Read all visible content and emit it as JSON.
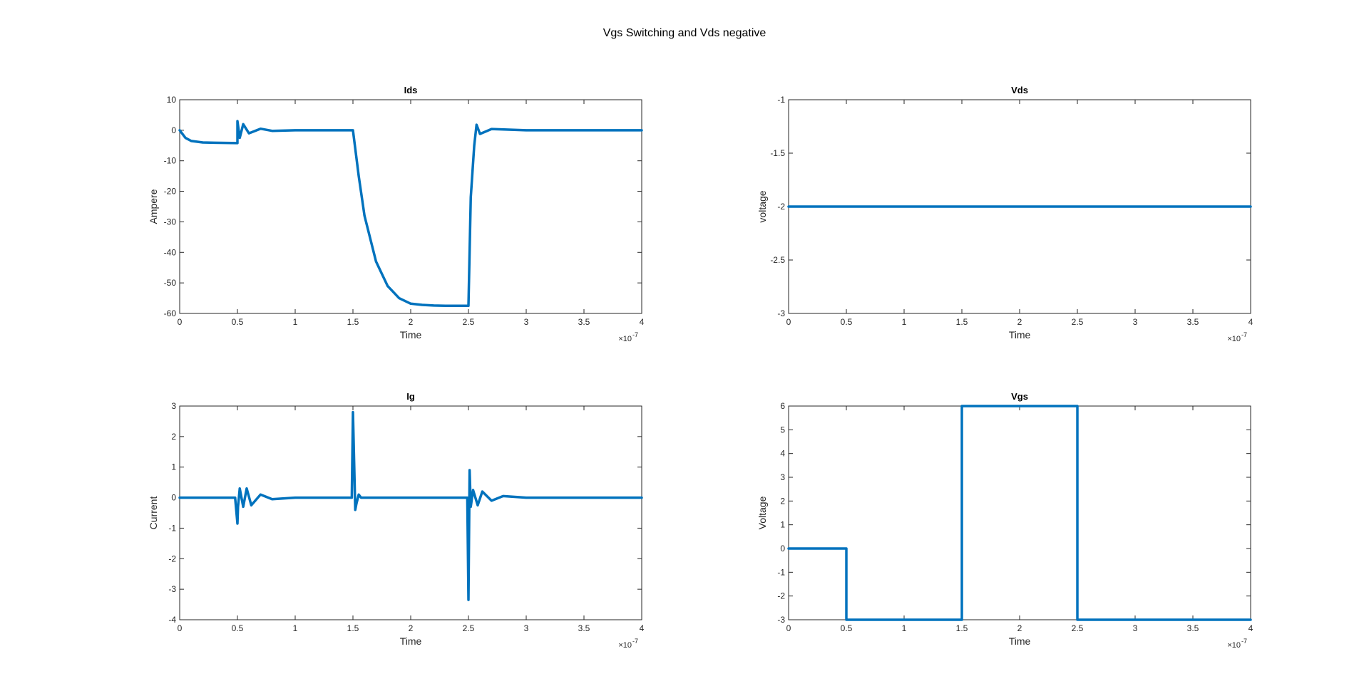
{
  "figure": {
    "title": "Vgs Switching and Vds negative",
    "line_color": "#0072BD"
  },
  "chart_data": [
    {
      "type": "line",
      "title": "Ids",
      "xlabel": "Time",
      "ylabel": "Ampere",
      "xlim": [
        0,
        4e-07
      ],
      "ylim": [
        -60,
        10
      ],
      "x_ticks": [
        0,
        0.5,
        1,
        1.5,
        2,
        2.5,
        3,
        3.5,
        4
      ],
      "x_tick_labels": [
        "0",
        "0.5",
        "1",
        "1.5",
        "2",
        "2.5",
        "3",
        "3.5",
        "4"
      ],
      "y_ticks": [
        -60,
        -50,
        -40,
        -30,
        -20,
        -10,
        0,
        10
      ],
      "y_tick_labels": [
        "-60",
        "-50",
        "-40",
        "-30",
        "-20",
        "-10",
        "0",
        "10"
      ],
      "x_exponent_base": "×10",
      "x_exponent_power": "-7",
      "grid": false,
      "series": [
        {
          "x": [
            0,
            5e-09,
            1e-08,
            2e-08,
            3e-08,
            5e-08,
            5e-08,
            5.2e-08,
            5.5e-08,
            6e-08,
            7e-08,
            8e-08,
            1e-07,
            1.3e-07,
            1.5e-07,
            1.55e-07,
            1.6e-07,
            1.7e-07,
            1.8e-07,
            1.9e-07,
            2e-07,
            2.1e-07,
            2.2e-07,
            2.3e-07,
            2.5e-07,
            2.52e-07,
            2.55e-07,
            2.57e-07,
            2.6e-07,
            2.7e-07,
            3e-07,
            4e-07
          ],
          "y": [
            0,
            -2.5,
            -3.5,
            -4.0,
            -4.1,
            -4.2,
            3.0,
            -2.5,
            2.0,
            -1.0,
            0.5,
            -0.2,
            0,
            0,
            0,
            -15,
            -28,
            -43,
            -51,
            -55,
            -56.8,
            -57.2,
            -57.4,
            -57.5,
            -57.5,
            -22,
            -5,
            1.8,
            -1.2,
            0.4,
            0,
            0
          ]
        }
      ]
    },
    {
      "type": "line",
      "title": "Vds",
      "xlabel": "Time",
      "ylabel": "voltage",
      "xlim": [
        0,
        4e-07
      ],
      "ylim": [
        -3,
        -1
      ],
      "x_ticks": [
        0,
        0.5,
        1,
        1.5,
        2,
        2.5,
        3,
        3.5,
        4
      ],
      "x_tick_labels": [
        "0",
        "0.5",
        "1",
        "1.5",
        "2",
        "2.5",
        "3",
        "3.5",
        "4"
      ],
      "y_ticks": [
        -3,
        -2.5,
        -2,
        -1.5,
        -1
      ],
      "y_tick_labels": [
        "-3",
        "-2.5",
        "-2",
        "-1.5",
        "-1"
      ],
      "x_exponent_base": "×10",
      "x_exponent_power": "-7",
      "grid": false,
      "series": [
        {
          "x": [
            0,
            4e-07
          ],
          "y": [
            -2,
            -2
          ]
        }
      ]
    },
    {
      "type": "line",
      "title": "Ig",
      "xlabel": "Time",
      "ylabel": "Current",
      "xlim": [
        0,
        4e-07
      ],
      "ylim": [
        -4,
        3
      ],
      "x_ticks": [
        0,
        0.5,
        1,
        1.5,
        2,
        2.5,
        3,
        3.5,
        4
      ],
      "x_tick_labels": [
        "0",
        "0.5",
        "1",
        "1.5",
        "2",
        "2.5",
        "3",
        "3.5",
        "4"
      ],
      "y_ticks": [
        -4,
        -3,
        -2,
        -1,
        0,
        1,
        2,
        3
      ],
      "y_tick_labels": [
        "-4",
        "-3",
        "-2",
        "-1",
        "0",
        "1",
        "2",
        "3"
      ],
      "x_exponent_base": "×10",
      "x_exponent_power": "-7",
      "grid": false,
      "series": [
        {
          "x": [
            0,
            4.8e-08,
            5e-08,
            5.05e-08,
            5.2e-08,
            5.5e-08,
            5.8e-08,
            6.2e-08,
            7e-08,
            8e-08,
            1e-07,
            1.49e-07,
            1.5e-07,
            1.51e-07,
            1.52e-07,
            1.53e-07,
            1.55e-07,
            1.57e-07,
            1.6e-07,
            2.49e-07,
            2.5e-07,
            2.51e-07,
            2.52e-07,
            2.54e-07,
            2.58e-07,
            2.62e-07,
            2.7e-07,
            2.8e-07,
            3e-07,
            4e-07
          ],
          "y": [
            0,
            0,
            -0.85,
            -0.3,
            0.3,
            -0.3,
            0.3,
            -0.25,
            0.1,
            -0.05,
            0,
            0,
            2.8,
            1.2,
            -0.4,
            -0.2,
            0.1,
            0,
            0,
            0,
            -3.35,
            0.9,
            -0.3,
            0.25,
            -0.25,
            0.2,
            -0.1,
            0.05,
            0,
            0
          ]
        }
      ]
    },
    {
      "type": "line",
      "title": "Vgs",
      "xlabel": "Time",
      "ylabel": "Voltage",
      "xlim": [
        0,
        4e-07
      ],
      "ylim": [
        -3,
        6
      ],
      "x_ticks": [
        0,
        0.5,
        1,
        1.5,
        2,
        2.5,
        3,
        3.5,
        4
      ],
      "x_tick_labels": [
        "0",
        "0.5",
        "1",
        "1.5",
        "2",
        "2.5",
        "3",
        "3.5",
        "4"
      ],
      "y_ticks": [
        -3,
        -2,
        -1,
        0,
        1,
        2,
        3,
        4,
        5,
        6
      ],
      "y_tick_labels": [
        "-3",
        "-2",
        "-1",
        "0",
        "1",
        "2",
        "3",
        "4",
        "5",
        "6"
      ],
      "x_exponent_base": "×10",
      "x_exponent_power": "-7",
      "grid": false,
      "series": [
        {
          "x": [
            0,
            5e-08,
            5e-08,
            1.5e-07,
            1.5e-07,
            2.5e-07,
            2.5e-07,
            4e-07
          ],
          "y": [
            0,
            0,
            -3,
            -3,
            6,
            6,
            -3,
            -3
          ]
        }
      ]
    }
  ]
}
